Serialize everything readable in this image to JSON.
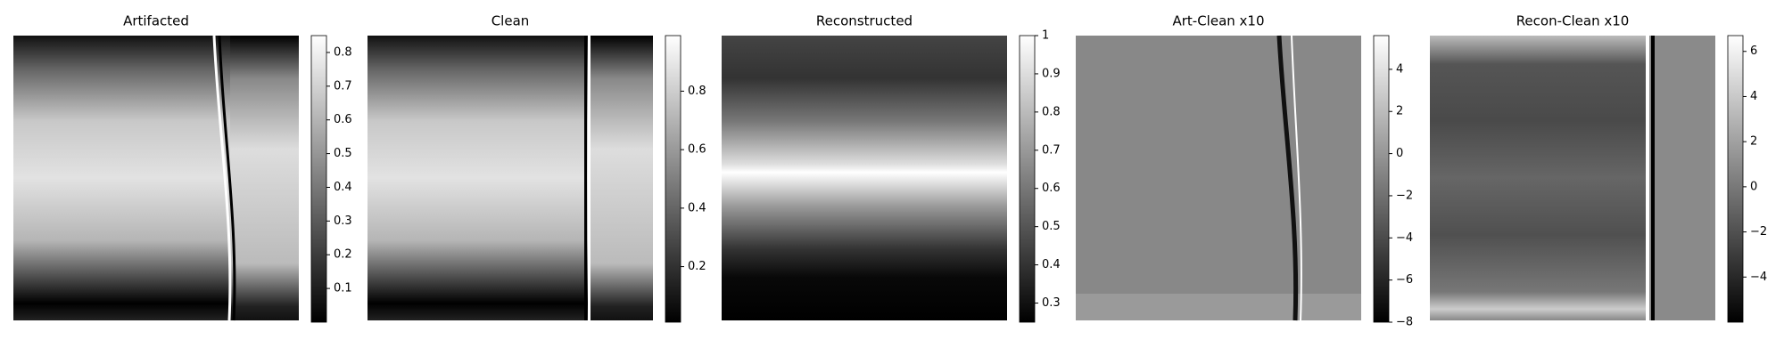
{
  "chart_data": [
    {
      "type": "heatmap",
      "title": "Artifacted",
      "ylim": [
        0.0,
        0.85
      ],
      "yticks": [
        0.1,
        0.2,
        0.3,
        0.4,
        0.5,
        0.6,
        0.7,
        0.8
      ]
    },
    {
      "type": "heatmap",
      "title": "Clean",
      "ylim": [
        0.01,
        0.99
      ],
      "yticks": [
        0.2,
        0.4,
        0.6,
        0.8
      ]
    },
    {
      "type": "heatmap",
      "title": "Reconstructed",
      "ylim": [
        0.25,
        1.0
      ],
      "yticks": [
        0.3,
        0.4,
        0.5,
        0.6,
        0.7,
        0.8,
        0.9,
        1.0
      ]
    },
    {
      "type": "heatmap",
      "title": "Art-Clean x10",
      "ylim": [
        -8,
        5.6
      ],
      "yticks": [
        {
          "value": -8,
          "label": "−8"
        },
        {
          "value": -6,
          "label": "−6"
        },
        {
          "value": -4,
          "label": "−4"
        },
        {
          "value": -2,
          "label": "−2"
        },
        0,
        2,
        4
      ]
    },
    {
      "type": "heatmap",
      "title": "Recon-Clean x10",
      "ylim": [
        -6,
        6.7
      ],
      "yticks": [
        {
          "value": -4,
          "label": "−4"
        },
        {
          "value": -2,
          "label": "−2"
        },
        0,
        2,
        4,
        6
      ]
    }
  ]
}
